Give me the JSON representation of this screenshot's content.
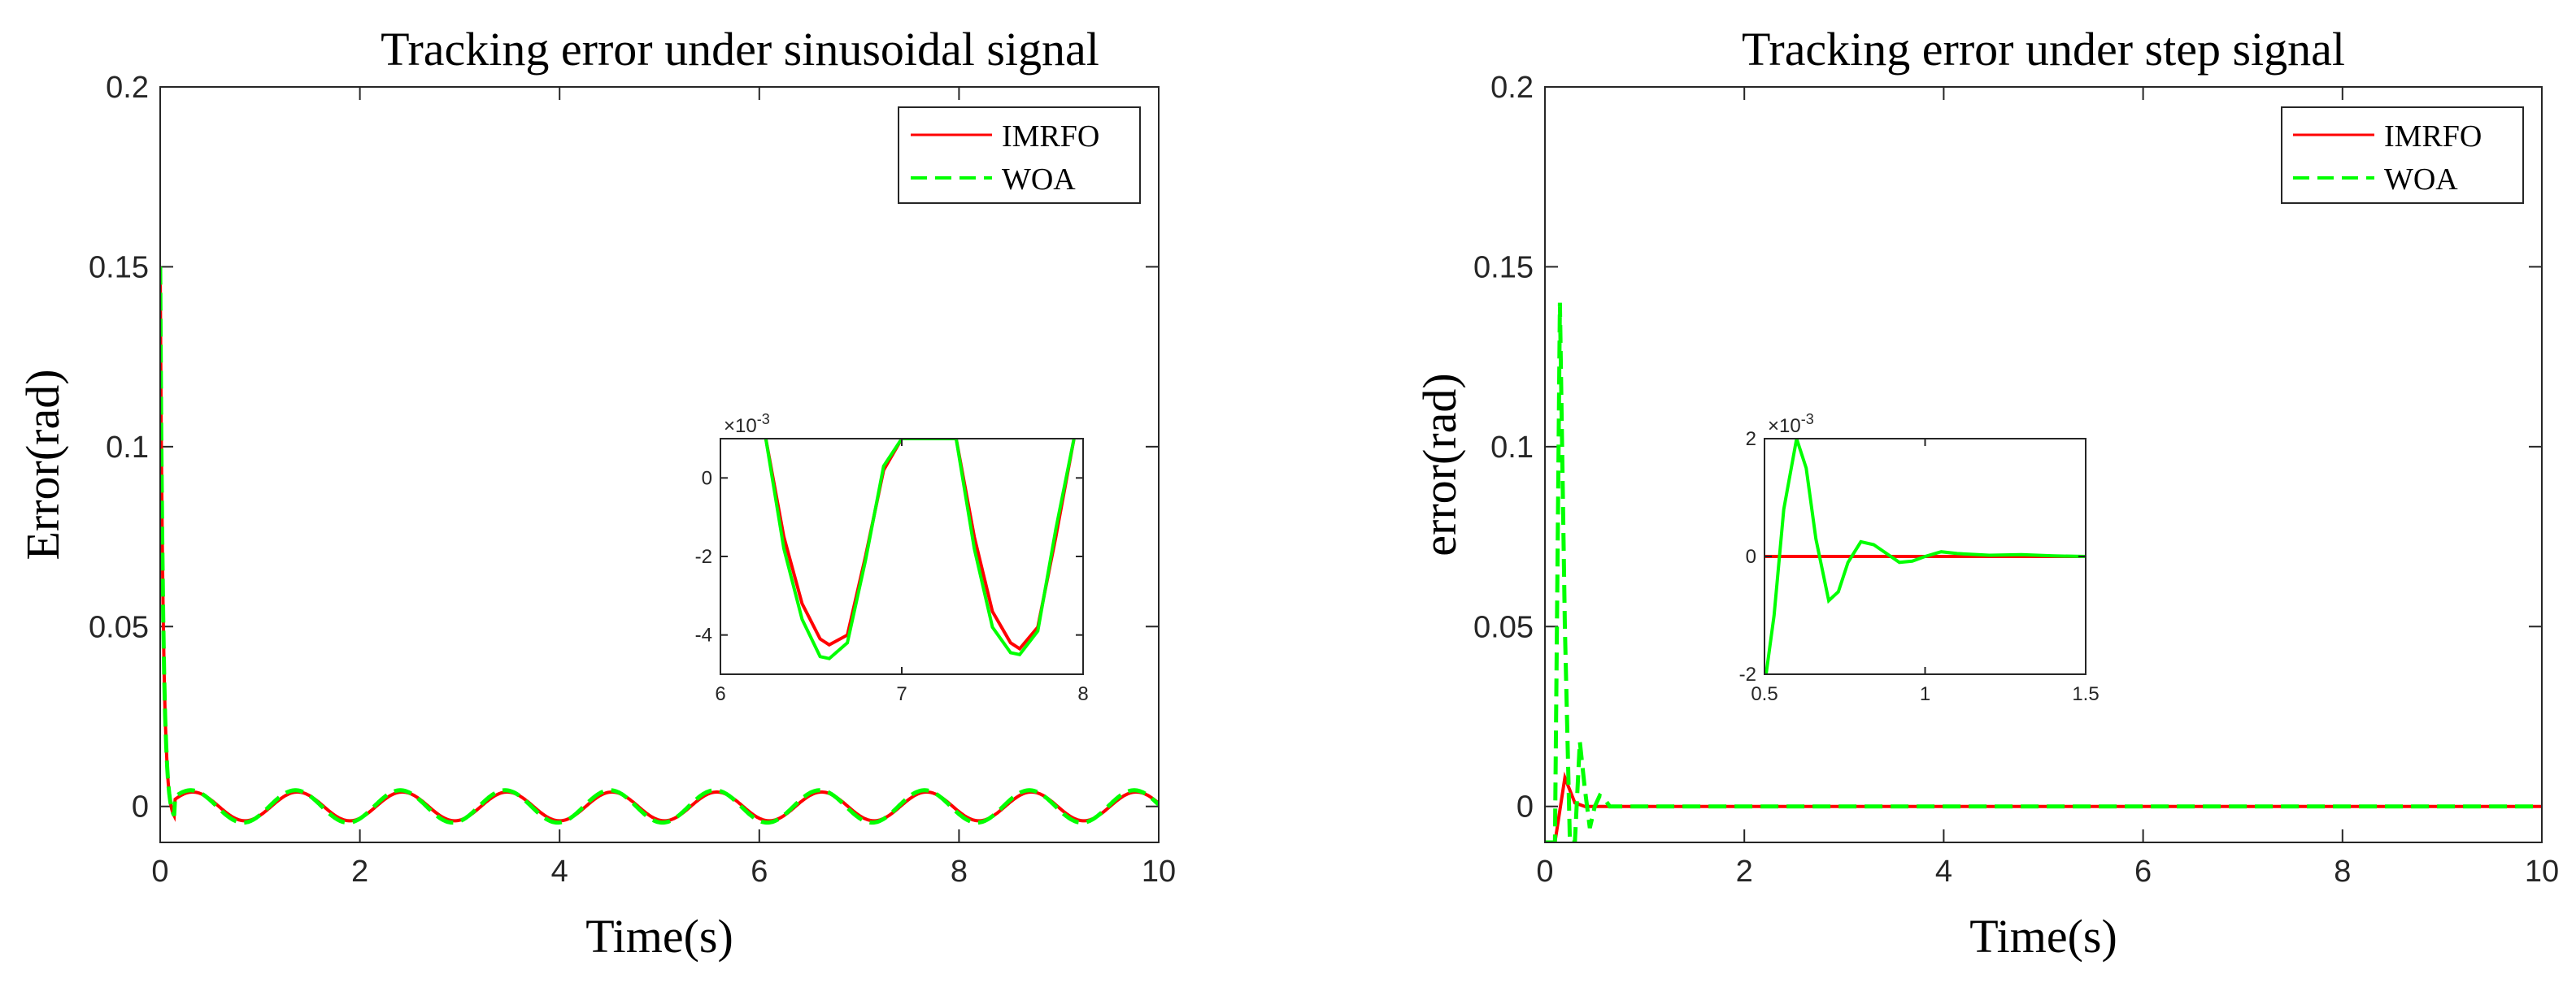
{
  "chart_data": [
    {
      "type": "line",
      "title": "Tracking error under sinusoidal signal",
      "xlabel": "Time(s)",
      "ylabel": "Error(rad)",
      "xlim": [
        0,
        10
      ],
      "ylim": [
        -0.01,
        0.2
      ],
      "xticks": [
        "0",
        "2",
        "4",
        "6",
        "8",
        "10"
      ],
      "yticks": [
        "0",
        "0.05",
        "0.1",
        "0.15",
        "0.2"
      ],
      "legend": [
        "IMRFO",
        "WOA"
      ],
      "legend_position": "top-right",
      "series": [
        {
          "name": "IMRFO",
          "color": "#ff0000",
          "style": "solid",
          "initial_error": 0.15,
          "oscillation_amplitude": 0.004,
          "oscillation_period": 1.05
        },
        {
          "name": "WOA",
          "color": "#00ff00",
          "style": "dashed",
          "initial_error": 0.15,
          "oscillation_amplitude": 0.0045,
          "oscillation_period": 1.05
        }
      ],
      "inset": {
        "xlim": [
          6,
          8
        ],
        "ylim": [
          -5,
          1
        ],
        "xticks": [
          "6",
          "7",
          "8"
        ],
        "yticks": [
          "-4",
          "-2",
          "0"
        ],
        "exponent_label": "×10",
        "exponent_power": "-3",
        "series": [
          {
            "name": "IMRFO",
            "x": [
              6.25,
              6.35,
              6.45,
              6.55,
              6.6,
              6.7,
              6.8,
              6.9,
              7.0,
              7.3,
              7.4,
              7.5,
              7.6,
              7.65,
              7.75,
              7.85,
              7.95
            ],
            "y": [
              1,
              -1.5,
              -3.2,
              -4.1,
              -4.25,
              -4.0,
              -2.0,
              0.2,
              1,
              1,
              -1.5,
              -3.4,
              -4.2,
              -4.35,
              -3.8,
              -1.5,
              1
            ]
          },
          {
            "name": "WOA",
            "x": [
              6.25,
              6.35,
              6.45,
              6.55,
              6.6,
              6.7,
              6.8,
              6.9,
              7.0,
              7.3,
              7.4,
              7.5,
              7.6,
              7.65,
              7.75,
              7.85,
              7.95
            ],
            "y": [
              1,
              -1.8,
              -3.6,
              -4.55,
              -4.6,
              -4.2,
              -2.1,
              0.3,
              1,
              1,
              -1.8,
              -3.8,
              -4.45,
              -4.5,
              -3.9,
              -1.3,
              1
            ]
          }
        ]
      }
    },
    {
      "type": "line",
      "title": "Tracking error under step signal",
      "xlabel": "Time(s)",
      "ylabel": "error(rad)",
      "xlim": [
        0,
        10
      ],
      "ylim": [
        -0.01,
        0.2
      ],
      "xticks": [
        "0",
        "2",
        "4",
        "6",
        "8",
        "10"
      ],
      "yticks": [
        "0",
        "0.05",
        "0.1",
        "0.15",
        "0.2"
      ],
      "legend": [
        "IMRFO",
        "WOA"
      ],
      "legend_position": "top-right",
      "series": [
        {
          "name": "IMRFO",
          "color": "#ff0000",
          "style": "solid",
          "x": [
            0,
            0.1,
            0.2,
            0.3,
            0.4,
            0.5,
            10
          ],
          "y": [
            -0.01,
            -0.01,
            0.008,
            0.001,
            0,
            0,
            0
          ]
        },
        {
          "name": "WOA",
          "color": "#00ff00",
          "style": "dashed",
          "x": [
            0,
            0.1,
            0.15,
            0.2,
            0.25,
            0.3,
            0.35,
            0.4,
            0.45,
            0.5,
            0.55,
            0.6,
            0.65,
            0.7,
            10
          ],
          "y": [
            -0.01,
            -0.01,
            0.14,
            0.05,
            -0.01,
            -0.01,
            0.018,
            0.005,
            -0.006,
            0,
            0.003,
            0.002,
            0,
            0,
            0
          ]
        }
      ],
      "inset": {
        "xlim": [
          0.5,
          1.5
        ],
        "ylim": [
          -2,
          2
        ],
        "xticks": [
          "0.5",
          "1",
          "1.5"
        ],
        "yticks": [
          "-2",
          "0",
          "2"
        ],
        "exponent_label": "×10",
        "exponent_power": "-3",
        "series": [
          {
            "name": "IMRFO",
            "x": [
              0.5,
              1.5
            ],
            "y": [
              0,
              0
            ]
          },
          {
            "name": "WOA",
            "x": [
              0.5,
              0.53,
              0.56,
              0.6,
              0.63,
              0.66,
              0.7,
              0.73,
              0.76,
              0.8,
              0.84,
              0.88,
              0.92,
              0.96,
              1.0,
              1.05,
              1.1,
              1.2,
              1.3,
              1.4,
              1.5
            ],
            "y": [
              -2.2,
              -1.0,
              0.8,
              2.0,
              1.5,
              0.3,
              -0.75,
              -0.6,
              -0.1,
              0.25,
              0.2,
              0.05,
              -0.1,
              -0.08,
              0.0,
              0.08,
              0.05,
              0.02,
              0.03,
              0.01,
              0.0
            ]
          }
        ]
      }
    }
  ]
}
